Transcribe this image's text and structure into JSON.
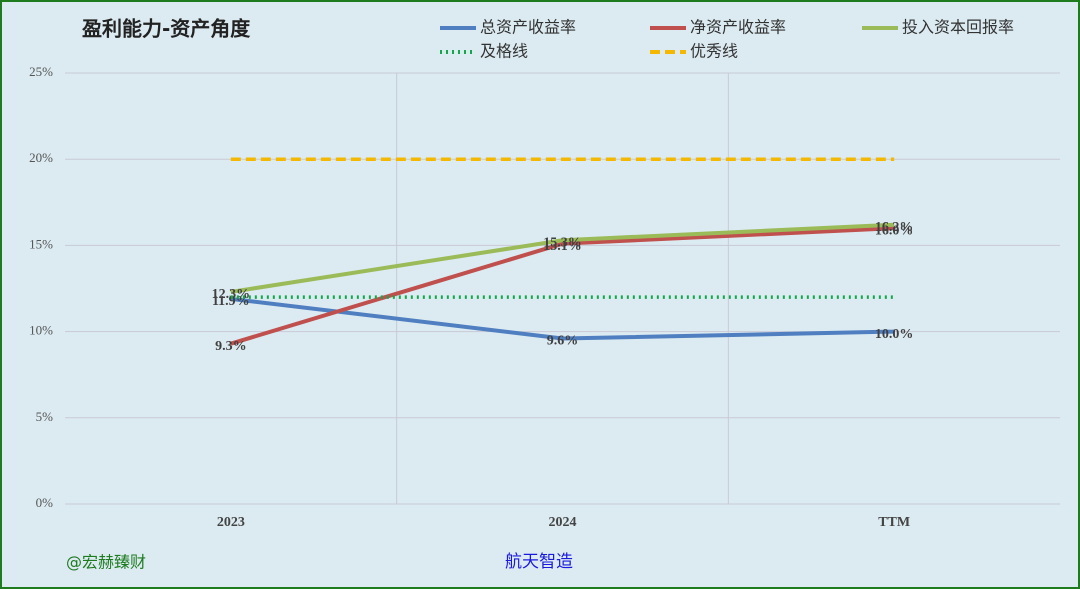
{
  "chart_data": {
    "type": "line",
    "title": "盈利能力-资产角度",
    "categories": [
      "2023",
      "2024",
      "TTM"
    ],
    "series": [
      {
        "name": "总资产收益率",
        "color": "#4f7fc0",
        "style": "solid",
        "values": [
          11.9,
          9.6,
          10.0
        ],
        "value_labels": [
          "11.9%",
          "9.6%",
          "10.0%"
        ]
      },
      {
        "name": "净资产收益率",
        "color": "#c0504d",
        "style": "solid",
        "values": [
          9.3,
          15.1,
          16.0
        ],
        "value_labels": [
          "9.3%",
          "15.1%",
          "16.0%"
        ]
      },
      {
        "name": "投入资本回报率",
        "color": "#9bbb59",
        "style": "solid",
        "values": [
          12.3,
          15.3,
          16.2
        ],
        "value_labels": [
          "12.3%",
          "15.3%",
          "16.2%"
        ]
      },
      {
        "name": "及格线",
        "color": "#12a84a",
        "style": "dotted",
        "values": [
          12,
          12,
          12
        ]
      },
      {
        "name": "优秀线",
        "color": "#f5b800",
        "style": "dashed",
        "values": [
          20,
          20,
          20
        ]
      }
    ],
    "ylim": [
      0,
      25
    ],
    "yticks": [
      {
        "value": 0,
        "label": "0%"
      },
      {
        "value": 5,
        "label": "5%"
      },
      {
        "value": 10,
        "label": "10%"
      },
      {
        "value": 15,
        "label": "15%"
      },
      {
        "value": 20,
        "label": "20%"
      },
      {
        "value": 25,
        "label": "25%"
      }
    ],
    "grid": true,
    "annotations": [
      "@宏赫臻财",
      "航天智造"
    ]
  }
}
